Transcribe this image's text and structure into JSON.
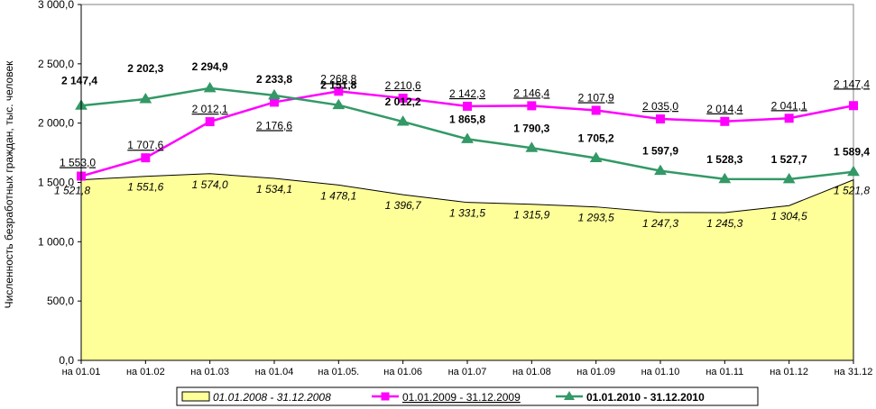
{
  "chart_data": {
    "type": "line",
    "ylabel": "Численность безработных граждан, тыс. человек",
    "ylim": [
      0,
      3000
    ],
    "y_ticks": [
      0,
      500,
      1000,
      1500,
      2000,
      2500,
      3000
    ],
    "y_tick_labels": [
      "0,0",
      "500,0",
      "1 000,0",
      "1 500,0",
      "2 000,0",
      "2 500,0",
      "3 000,0"
    ],
    "categories": [
      "на 01.01",
      "на 01.02",
      "на 01.03",
      "на 01.04",
      "на 01.05.",
      "на 01.06",
      "на 01.07",
      "на 01.08",
      "на 01.09",
      "на 01.10",
      "на 01.11",
      "на 01.12",
      "на 31.12"
    ],
    "legend_position": "bottom",
    "series": [
      {
        "name": "01.01.2008 - 31.12.2008",
        "style": "area",
        "color": "#ffff99",
        "values": [
          1521.8,
          1551.6,
          1574.0,
          1534.1,
          1478.1,
          1396.7,
          1331.5,
          1315.9,
          1293.5,
          1247.3,
          1245.3,
          1304.5,
          1521.8
        ],
        "labels": [
          "1 521,8",
          "1 551,6",
          "1 574,0",
          "1 534,1",
          "1 478,1",
          "1 396,7",
          "1 331,5",
          "1 315,9",
          "1 293,5",
          "1 247,3",
          "1 245,3",
          "1 304,5",
          "1 521,8"
        ]
      },
      {
        "name": "01.01.2009 - 31.12.2009",
        "style": "line",
        "marker": "square",
        "color": "#ff00ff",
        "values": [
          1553.0,
          1707.6,
          2012.1,
          2176.6,
          2268.8,
          2210.6,
          2142.3,
          2146.4,
          2107.9,
          2035.0,
          2014.4,
          2041.1,
          2147.4
        ],
        "labels": [
          "1 553,0",
          "1 707,6",
          "2 012,1",
          "2 176,6",
          "2 268,8",
          "2 210,6",
          "2 142,3",
          "2 146,4",
          "2 107,9",
          "2 035,0",
          "2 014,4",
          "2 041,1",
          "2 147,4"
        ]
      },
      {
        "name": "01.01.2010 - 31.12.2010",
        "style": "line",
        "marker": "triangle",
        "color": "#339966",
        "values": [
          2147.4,
          2202.3,
          2294.9,
          2233.8,
          2151.8,
          2012.2,
          1865.8,
          1790.3,
          1705.2,
          1597.9,
          1528.3,
          1527.7,
          1589.4
        ],
        "labels": [
          "2 147,4",
          "2 202,3",
          "2 294,9",
          "2 233,8",
          "2 151,8",
          "2 012,2",
          "1 865,8",
          "1 790,3",
          "1 705,2",
          "1 597,9",
          "1 528,3",
          "1 527,7",
          "1 589,4"
        ]
      }
    ]
  }
}
